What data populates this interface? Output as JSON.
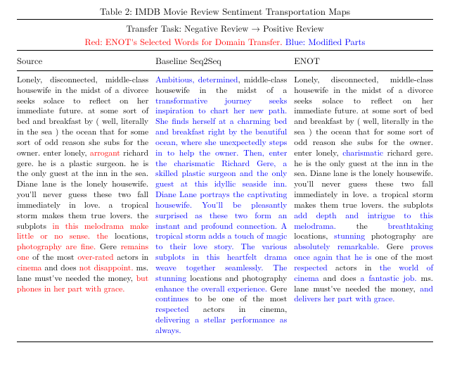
{
  "colors": {
    "red": "#ff0000",
    "blue": "#0000ff",
    "text": "#000000",
    "bg": "#ffffff",
    "rule": "#000000"
  },
  "typography": {
    "body_family": "Latin Modern Roman / Times serif",
    "body_size_pt": 9,
    "caption_size_pt": 10,
    "line_height": 1.28,
    "justify": true
  },
  "table": {
    "type": "table",
    "caption": "Table 2: IMDB Movie Review Sentiment Transportation Maps",
    "task_line_pre": "Transfer Task: Negative Review ",
    "task_arrow": "→",
    "task_line_post": " Positive Review",
    "legend_red": "Red: ENOT's Selected Words for Domain Transfer.",
    "legend_blue": "Blue: Modified Parts",
    "headers": {
      "c1": "Source",
      "c2": "Baseline Seq2Seq",
      "c3": "ENOT"
    },
    "column_widths_pct": [
      33.3,
      33.3,
      33.4
    ],
    "source_runs": [
      {
        "c": "text",
        "t": "Lonely, disconnected, middle-class housewife in the midst of a divorce seeks solace to reflect on her immediate future.  at some sort of bed and breakfast by ( well, literally in the sea ) the ocean that for some sort of odd reason she subs for the owner.  enter lonely, "
      },
      {
        "c": "red",
        "t": "arrogant"
      },
      {
        "c": "text",
        "t": " richard gere. he is a plastic surgeon. he is the only guest at the inn in the sea. Diane lane is the lonely housewife.  you'll never guess these two fall immediately in love.  a tropical storm makes them true lovers.  the subplots "
      },
      {
        "c": "red",
        "t": "in this melodrama make little or no sense. the"
      },
      {
        "c": "text",
        "t": " locations, "
      },
      {
        "c": "red",
        "t": "photography are fine."
      },
      {
        "c": "text",
        "t": "  Gere "
      },
      {
        "c": "red",
        "t": "remains one"
      },
      {
        "c": "text",
        "t": " of the most "
      },
      {
        "c": "red",
        "t": "over-rated"
      },
      {
        "c": "text",
        "t": " actors in "
      },
      {
        "c": "red",
        "t": "cinema"
      },
      {
        "c": "text",
        "t": " and does "
      },
      {
        "c": "red",
        "t": "not disappoint."
      },
      {
        "c": "text",
        "t": " ms. lane must've needed the money, "
      },
      {
        "c": "red",
        "t": "but phones in her part with grace."
      }
    ],
    "baseline_runs": [
      {
        "c": "blue",
        "t": "Ambitious, determined"
      },
      {
        "c": "text",
        "t": ", middle-class housewife in the midst of a "
      },
      {
        "c": "blue",
        "t": "transformative journey seeks inspiration to chart her new path. She finds herself at a charming bed and breakfast right by the beautiful ocean, where she unexpectedly steps in to help the owner.  Then, enter the charismatic Richard Gere, a skilled plastic surgeon and the only guest at this idyllic seaside inn. Diane Lane portrays the captivating housewife.  You'll be pleasantly surprised as these two form an instant and profound connection.  A tropical storm adds a touch of magic to their love story. The various subplots in this heartfelt drama weave together seamlessly.  The stunning"
      },
      {
        "c": "text",
        "t": " locations and photography "
      },
      {
        "c": "blue",
        "t": "enhance the overall experience."
      },
      {
        "c": "text",
        "t": " Gere "
      },
      {
        "c": "blue",
        "t": "continues"
      },
      {
        "c": "text",
        "t": " to be one of the most "
      },
      {
        "c": "blue",
        "t": "respected"
      },
      {
        "c": "text",
        "t": " actors in cinema, "
      },
      {
        "c": "blue",
        "t": "delivering a stellar performance as always."
      }
    ],
    "enot_runs": [
      {
        "c": "text",
        "t": "Lonely, disconnected, middle-class housewife in the midst of a divorce seeks solace to reflect on her immediate future.  at some sort of bed and breakfast by ( well, literally in the sea ) the ocean that for some sort of odd reason she subs for the owner. enter lonely, "
      },
      {
        "c": "blue",
        "t": "charismatic"
      },
      {
        "c": "text",
        "t": " richard gere.  he is the only guest at the inn in the sea.  Diane lane is the lonely housewife.  you'll never guess these two fall immediately in love.  a tropical storm makes them true lovers.  the subplots "
      },
      {
        "c": "blue",
        "t": "add depth and intrigue to this melodrama."
      },
      {
        "c": "text",
        "t": "  the "
      },
      {
        "c": "blue",
        "t": "breathtaking"
      },
      {
        "c": "text",
        "t": " locations, "
      },
      {
        "c": "blue",
        "t": "stunning"
      },
      {
        "c": "text",
        "t": " photography are "
      },
      {
        "c": "blue",
        "t": "absolutely remarkable."
      },
      {
        "c": "text",
        "t": " Gere "
      },
      {
        "c": "blue",
        "t": "proves once again that he is"
      },
      {
        "c": "text",
        "t": " one of the most "
      },
      {
        "c": "blue",
        "t": "respected"
      },
      {
        "c": "text",
        "t": " actors in "
      },
      {
        "c": "blue",
        "t": "the world of cinema"
      },
      {
        "c": "text",
        "t": " and does "
      },
      {
        "c": "blue",
        "t": "a fantastic job."
      },
      {
        "c": "text",
        "t": "  ms. lane must've needed the money, "
      },
      {
        "c": "blue",
        "t": "and delivers her part with grace."
      }
    ]
  }
}
